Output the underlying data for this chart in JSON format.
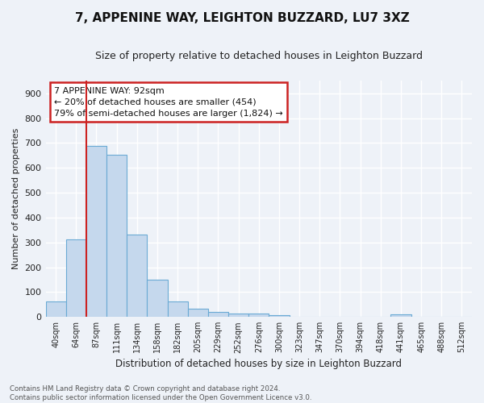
{
  "title": "7, APPENINE WAY, LEIGHTON BUZZARD, LU7 3XZ",
  "subtitle": "Size of property relative to detached houses in Leighton Buzzard",
  "xlabel": "Distribution of detached houses by size in Leighton Buzzard",
  "ylabel": "Number of detached properties",
  "categories": [
    "40sqm",
    "64sqm",
    "87sqm",
    "111sqm",
    "134sqm",
    "158sqm",
    "182sqm",
    "205sqm",
    "229sqm",
    "252sqm",
    "276sqm",
    "300sqm",
    "323sqm",
    "347sqm",
    "370sqm",
    "394sqm",
    "418sqm",
    "441sqm",
    "465sqm",
    "488sqm",
    "512sqm"
  ],
  "values": [
    63,
    311,
    688,
    651,
    330,
    150,
    63,
    33,
    20,
    13,
    13,
    8,
    0,
    0,
    0,
    0,
    0,
    10,
    0,
    0,
    0
  ],
  "bar_color": "#c5d8ed",
  "bar_edge_color": "#6aaad4",
  "background_color": "#eef2f8",
  "grid_color": "#ffffff",
  "annotation_box_text": [
    "7 APPENINE WAY: 92sqm",
    "← 20% of detached houses are smaller (454)",
    "79% of semi-detached houses are larger (1,824) →"
  ],
  "red_line_color": "#cc2222",
  "red_line_x": 2.5,
  "ylim": [
    0,
    950
  ],
  "yticks": [
    0,
    100,
    200,
    300,
    400,
    500,
    600,
    700,
    800,
    900
  ],
  "footer_text": "Contains HM Land Registry data © Crown copyright and database right 2024.\nContains public sector information licensed under the Open Government Licence v3.0."
}
